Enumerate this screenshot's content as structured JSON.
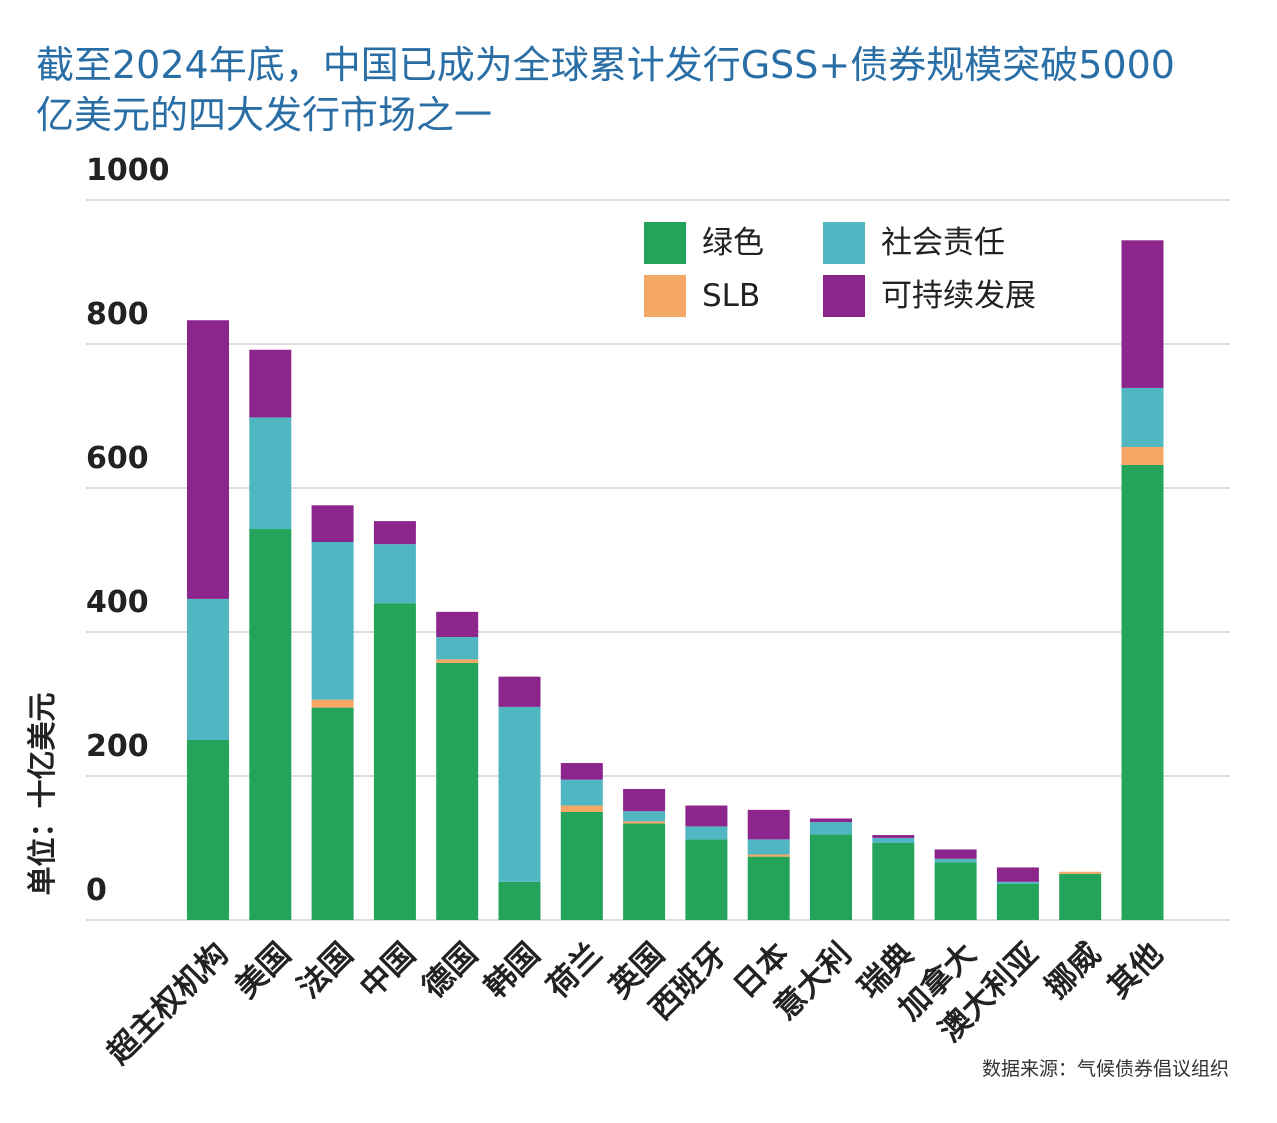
{
  "title_lines": [
    "截至2024年底，中国已成为全球累计发行GSS+债券规模突破5000",
    "亿美元的四大发行市场之一"
  ],
  "source": "数据来源：气候债券倡议组织",
  "colors": {
    "title": "#2a6ea6",
    "green": "#23a45a",
    "social": "#4fb6c2",
    "slb": "#f5a766",
    "sustainable": "#8c258c",
    "grid": "#bbbbbb",
    "text": "#222222"
  },
  "chart_data": {
    "type": "bar",
    "stacked": true,
    "ylabel": "单位：十亿美元",
    "ylim": [
      0,
      1000
    ],
    "yticks": [
      0,
      200,
      400,
      600,
      800,
      1000
    ],
    "legend_position": "top-right",
    "categories": [
      "超主权机构",
      "美国",
      "法国",
      "中国",
      "德国",
      "韩国",
      "荷兰",
      "英国",
      "西班牙",
      "日本",
      "意大利",
      "瑞典",
      "加拿大",
      "澳大利亚",
      "挪威",
      "其他"
    ],
    "series": [
      {
        "name": "绿色",
        "color": "#23a45a",
        "values": [
          250,
          543,
          295,
          440,
          357,
          53,
          150,
          134,
          112,
          88,
          119,
          107,
          80,
          50,
          64,
          632
        ]
      },
      {
        "name": "SLB",
        "color": "#f5a766",
        "values": [
          0,
          0,
          11,
          0,
          5,
          0,
          9,
          3,
          0,
          3,
          0,
          0,
          0,
          0,
          3,
          25
        ]
      },
      {
        "name": "社会责任",
        "color": "#4fb6c2",
        "values": [
          196,
          155,
          219,
          82,
          31,
          243,
          36,
          14,
          18,
          21,
          17,
          7,
          5,
          3,
          0,
          82
        ]
      },
      {
        "name": "可持续发展",
        "color": "#8c258c",
        "values": [
          387,
          94,
          51,
          32,
          35,
          42,
          23,
          31,
          29,
          41,
          5,
          4,
          13,
          20,
          0,
          205
        ]
      }
    ]
  }
}
